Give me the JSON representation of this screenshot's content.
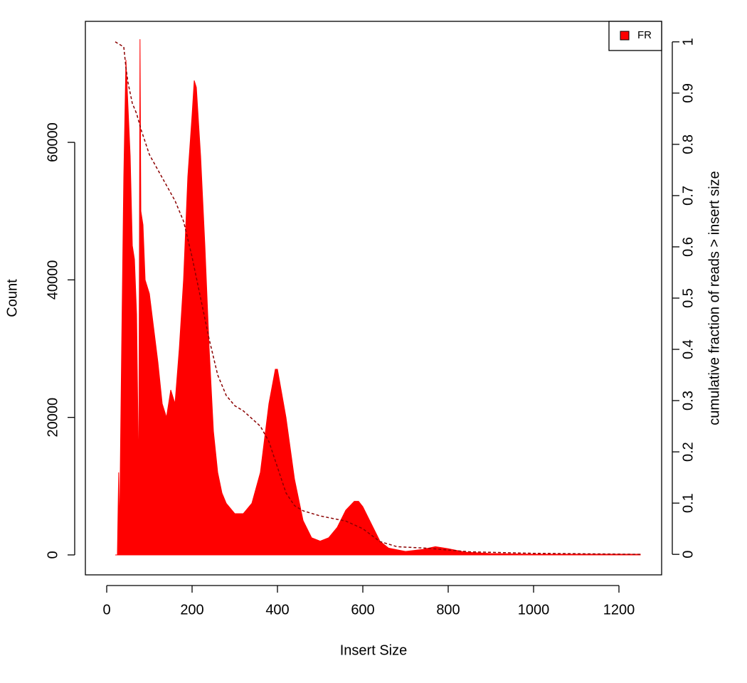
{
  "chart_data": {
    "type": "area",
    "xlabel": "Insert Size",
    "ylabel": "Count",
    "y2label": "cumulative fraction of reads > insert size",
    "xlim": [
      -50,
      1300
    ],
    "ylim": [
      -2900,
      77600
    ],
    "y2lim": [
      -0.04,
      1.04
    ],
    "xticks": [
      0,
      200,
      400,
      600,
      800,
      1000,
      1200
    ],
    "yticks": [
      0,
      20000,
      40000,
      60000
    ],
    "y2ticks": [
      0,
      0.1,
      0.2,
      0.3,
      0.4,
      0.5,
      0.6,
      0.7,
      0.8,
      0.9,
      1
    ],
    "legend": "topright",
    "series": [
      {
        "name": "FR",
        "type": "area",
        "color": "#ff0000",
        "x": [
          20,
          25,
          28,
          30,
          35,
          40,
          45,
          50,
          55,
          60,
          65,
          70,
          75,
          78,
          80,
          85,
          90,
          100,
          110,
          120,
          130,
          140,
          150,
          160,
          170,
          180,
          190,
          200,
          205,
          210,
          220,
          230,
          240,
          250,
          260,
          270,
          280,
          300,
          320,
          340,
          360,
          380,
          395,
          400,
          420,
          440,
          460,
          480,
          500,
          520,
          540,
          560,
          580,
          590,
          600,
          620,
          640,
          660,
          700,
          740,
          770,
          800,
          840,
          900,
          1000,
          1100,
          1250
        ],
        "values": [
          0,
          0,
          12000,
          3000,
          30000,
          55000,
          72000,
          65000,
          58000,
          45000,
          43000,
          35000,
          10000,
          75000,
          50000,
          48000,
          40000,
          38000,
          33000,
          28000,
          22000,
          20000,
          24000,
          22000,
          30000,
          40000,
          55000,
          64000,
          69000,
          68000,
          58000,
          45000,
          30000,
          18000,
          12000,
          9000,
          7500,
          6000,
          6000,
          7500,
          12000,
          22000,
          27000,
          27000,
          20000,
          11000,
          5000,
          2500,
          2000,
          2500,
          4000,
          6500,
          7800,
          7800,
          7000,
          4500,
          2000,
          1000,
          500,
          800,
          1200,
          900,
          400,
          200,
          100,
          100,
          100
        ]
      },
      {
        "type": "line",
        "axis": "y2",
        "color": "#8b0000",
        "x": [
          20,
          40,
          45,
          50,
          60,
          70,
          80,
          100,
          120,
          140,
          160,
          180,
          200,
          220,
          240,
          260,
          280,
          300,
          320,
          340,
          360,
          380,
          400,
          420,
          440,
          460,
          500,
          560,
          600,
          640,
          680,
          750,
          850,
          1000,
          1250
        ],
        "values": [
          1,
          0.99,
          0.95,
          0.92,
          0.88,
          0.86,
          0.83,
          0.78,
          0.75,
          0.72,
          0.69,
          0.65,
          0.58,
          0.5,
          0.42,
          0.35,
          0.31,
          0.29,
          0.28,
          0.265,
          0.25,
          0.22,
          0.17,
          0.12,
          0.095,
          0.085,
          0.075,
          0.065,
          0.05,
          0.025,
          0.015,
          0.012,
          0.005,
          0.002,
          0
        ]
      }
    ]
  }
}
